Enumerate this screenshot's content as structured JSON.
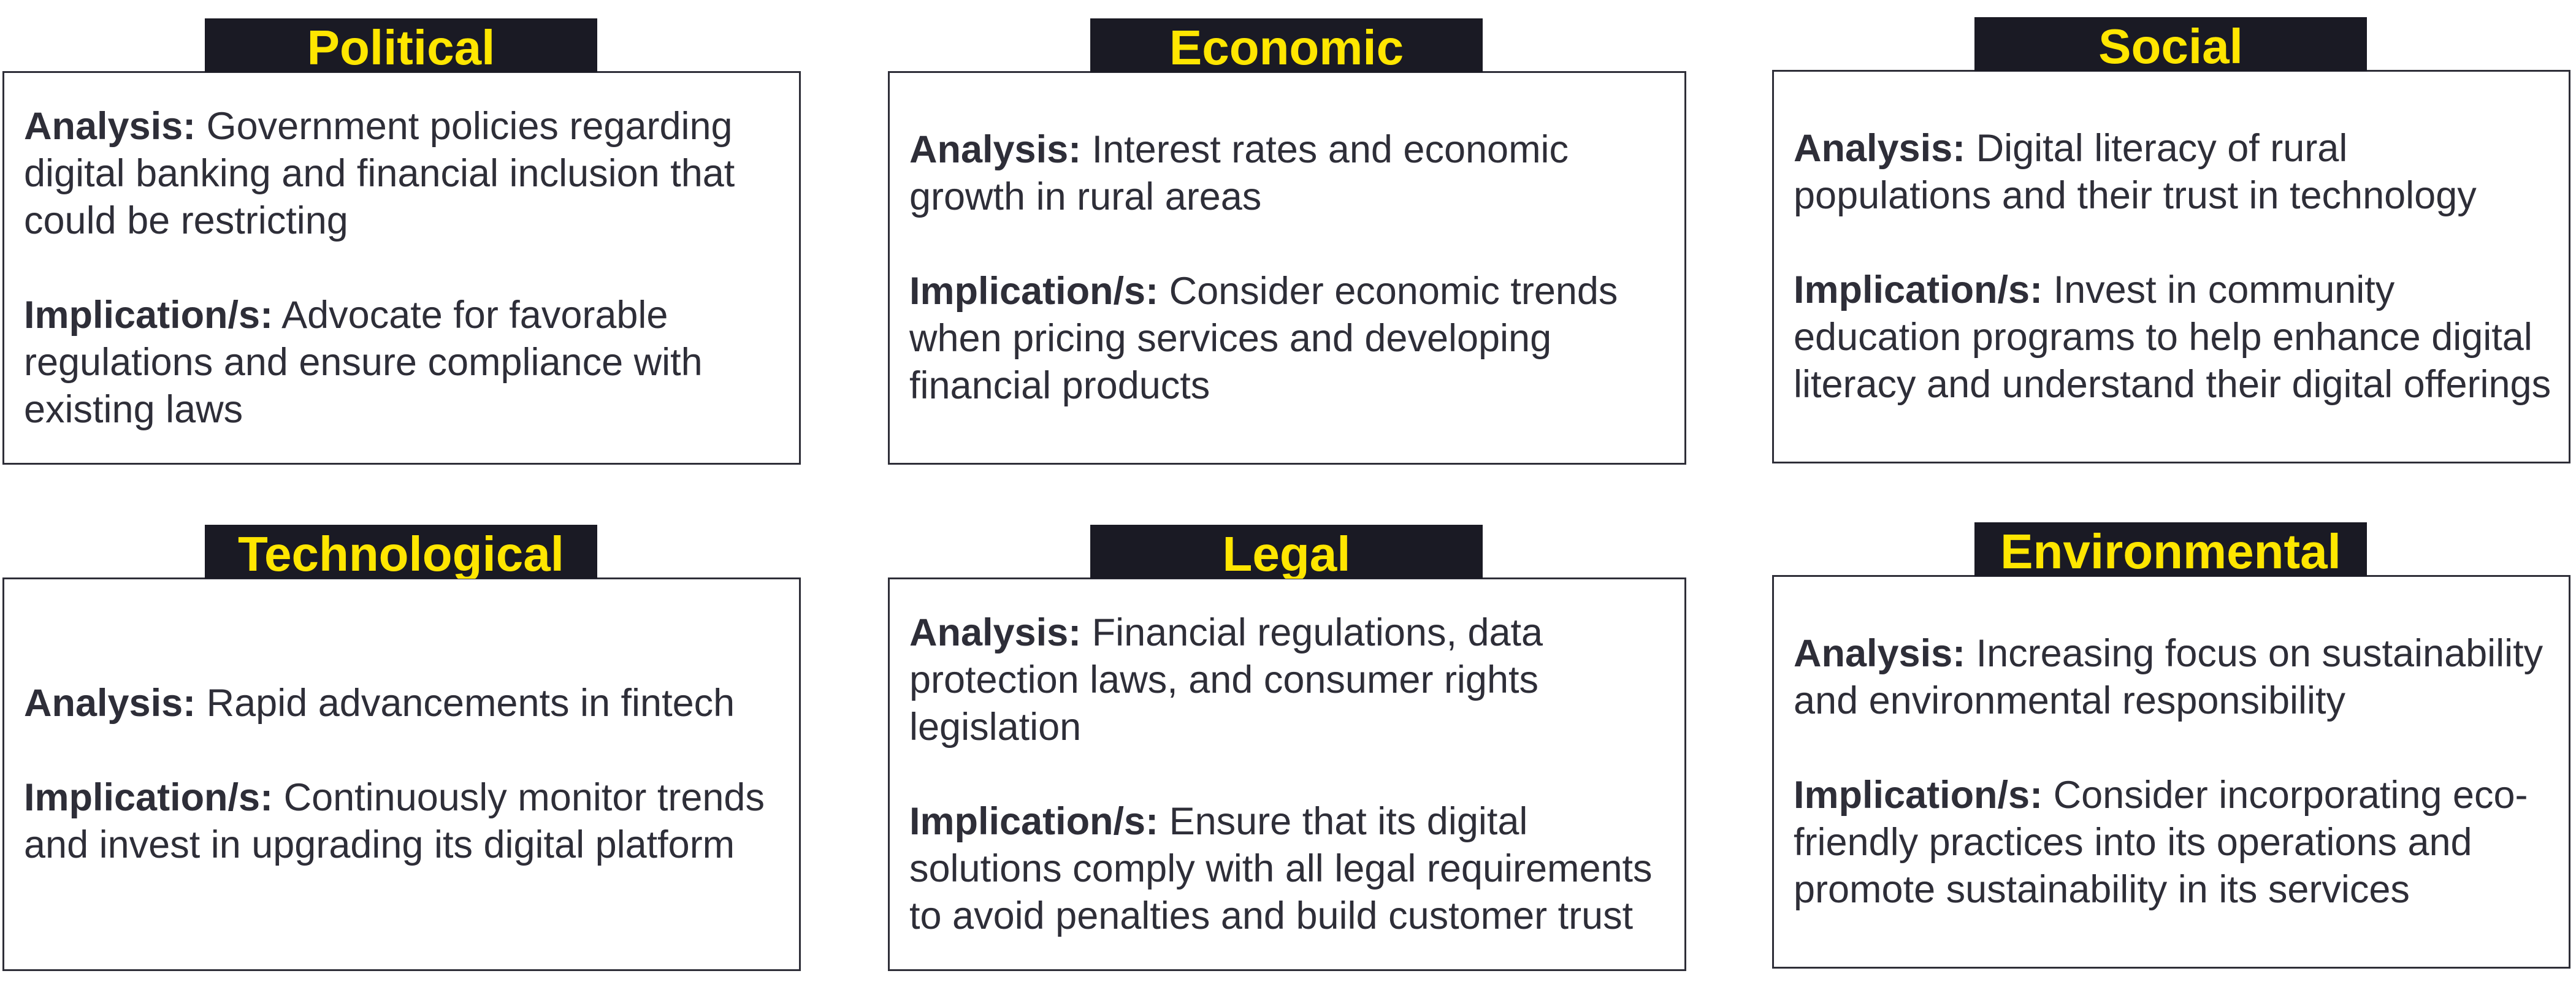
{
  "analysis_label": "Analysis:",
  "implication_label": "Implication/s:",
  "cards": [
    {
      "title": "Political",
      "analysis": "Government policies regarding digital banking and financial inclusion that could be restricting",
      "implication": "Advocate for favorable regulations and ensure compliance with existing laws"
    },
    {
      "title": "Economic",
      "analysis": "Interest rates and economic growth in rural areas",
      "implication": "Consider economic trends when pricing services and developing financial products"
    },
    {
      "title": "Social",
      "analysis": "Digital literacy of rural populations and their trust in technology",
      "implication": "Invest in community education programs to help enhance digital literacy and understand their digital offerings"
    },
    {
      "title": "Technological",
      "analysis": "Rapid advancements in fintech",
      "implication": "Continuously monitor trends and invest in upgrading its digital platform"
    },
    {
      "title": "Legal",
      "analysis": "Financial regulations, data protection laws, and consumer rights legislation",
      "implication": "Ensure that its digital solutions comply with all legal requirements to avoid penalties and build customer trust"
    },
    {
      "title": "Environmental",
      "analysis": "Increasing focus on sustainability and environmental responsibility",
      "implication": "Consider incorporating eco-friendly practices into its operations and promote sustainability in its services"
    }
  ],
  "colors": {
    "title_bg": "#1a1a24",
    "title_text": "#ffe600",
    "body_text": "#2e2e38",
    "border": "#2e2e38"
  }
}
